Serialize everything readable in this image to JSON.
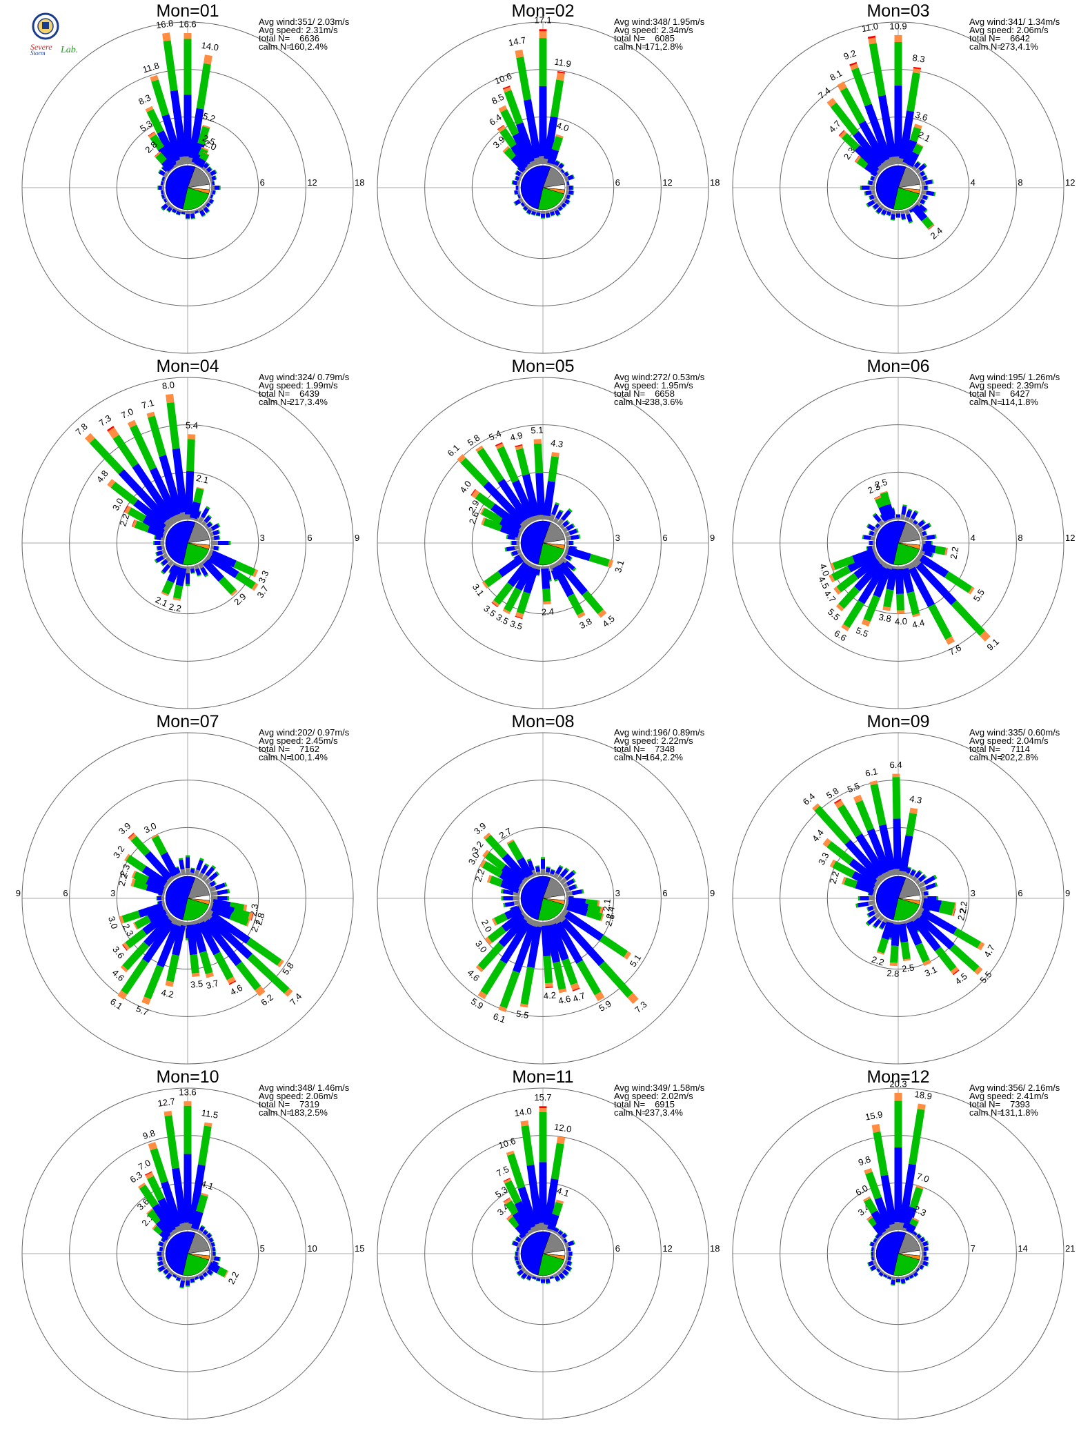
{
  "logo": {
    "top_text": "Severe",
    "bottom_text": "Storm",
    "lab_text": "Lab."
  },
  "colors": {
    "axis": "#aaaaaa",
    "ring": "#666666",
    "calm_pie": [
      "#0000ff",
      "#00c000",
      "#ff8c1a",
      "#ffffff",
      "#808080"
    ],
    "speed_classes": [
      "#808080",
      "#0000ff",
      "#00c000",
      "#ff8c40",
      "#ff0000"
    ]
  },
  "chart_data": [
    {
      "type": "polar-bar",
      "title": "Mon=01",
      "stats": {
        "avg_wind": "Avg wind:351/ 2.03m/s",
        "avg_speed": "Avg speed: 2.31m/s",
        "total_label": "total N=",
        "total": "6636",
        "calm_label": "calm N=",
        "calm": "160,",
        "calm_pct": "2.4%"
      },
      "rings": [
        "6",
        "12",
        "18"
      ],
      "rmax": 18,
      "bars": [
        [
          334,
          8.3,
          "8.3"
        ],
        [
          343,
          11.8,
          "11.8"
        ],
        [
          352,
          16.8,
          "16.8"
        ],
        [
          0,
          16.6,
          "16.6"
        ],
        [
          9,
          14.0,
          "14.0"
        ],
        [
          17,
          5.2,
          "5.2"
        ],
        [
          24,
          2.5,
          "2.5"
        ],
        [
          28,
          2.0,
          "2.0"
        ],
        [
          326,
          5.3,
          "5.3"
        ],
        [
          318,
          2.8,
          "2.8"
        ]
      ]
    },
    {
      "type": "polar-bar",
      "title": "Mon=02",
      "stats": {
        "avg_wind": "Avg wind:348/ 1.95m/s",
        "avg_speed": "Avg speed: 2.34m/s",
        "total_label": "total N=",
        "total": "6085",
        "calm_label": "calm N=",
        "calm": "171,",
        "calm_pct": "2.8%"
      },
      "rings": [
        "6",
        "12",
        "18"
      ],
      "rmax": 18,
      "bars": [
        [
          316,
          3.9,
          "3.9"
        ],
        [
          325,
          6.4,
          "6.4"
        ],
        [
          333,
          8.5,
          "8.5"
        ],
        [
          340,
          10.6,
          "10.6"
        ],
        [
          350,
          14.7,
          "14.7"
        ],
        [
          0,
          17.1,
          "17.1"
        ],
        [
          9,
          11.9,
          "11.9"
        ],
        [
          18,
          4.0,
          "4.0"
        ]
      ]
    },
    {
      "type": "polar-bar",
      "title": "Mon=03",
      "stats": {
        "avg_wind": "Avg wind:341/ 1.34m/s",
        "avg_speed": "Avg speed: 2.06m/s",
        "total_label": "total N=",
        "total": "6642",
        "calm_label": "calm N=",
        "calm": "273,",
        "calm_pct": "4.1%"
      },
      "rings": [
        "4",
        "8",
        "12"
      ],
      "rmax": 12,
      "bars": [
        [
          305,
          2.3,
          "2.3"
        ],
        [
          314,
          4.7,
          "4.7"
        ],
        [
          322,
          7.4,
          "7.4"
        ],
        [
          331,
          8.1,
          "8.1"
        ],
        [
          340,
          9.2,
          "9.2"
        ],
        [
          350,
          11.0,
          "11.0"
        ],
        [
          0,
          10.9,
          "10.9"
        ],
        [
          9,
          8.3,
          "8.3"
        ],
        [
          18,
          3.6,
          "3.6"
        ],
        [
          27,
          2.1,
          "2.1"
        ],
        [
          140,
          2.4,
          "2.4"
        ]
      ]
    },
    {
      "type": "polar-bar",
      "title": "Mon=04",
      "stats": {
        "avg_wind": "Avg wind:324/ 0.79m/s",
        "avg_speed": "Avg speed: 1.99m/s",
        "total_label": "total N=",
        "total": "6439",
        "calm_label": "calm N=",
        "calm": "217,",
        "calm_pct": "3.4%"
      },
      "rings": [
        "3",
        "6",
        "9"
      ],
      "rmax": 9,
      "bars": [
        [
          290,
          2.2,
          "2.2"
        ],
        [
          299,
          3.0,
          "3.0"
        ],
        [
          308,
          4.8,
          "4.8"
        ],
        [
          317,
          7.8,
          "7.8"
        ],
        [
          326,
          7.3,
          "7.3"
        ],
        [
          335,
          7.0,
          "7.0"
        ],
        [
          344,
          7.1,
          "7.1"
        ],
        [
          353,
          8.0,
          "8.0"
        ],
        [
          2,
          5.4,
          "5.4"
        ],
        [
          13,
          2.1,
          "2.1"
        ],
        [
          114,
          3.3,
          "3.3"
        ],
        [
          123,
          3.7,
          "3.7"
        ],
        [
          137,
          2.9,
          "2.9"
        ],
        [
          191,
          2.2,
          "2.2"
        ],
        [
          204,
          2.1,
          "2.1"
        ]
      ]
    },
    {
      "type": "polar-bar",
      "title": "Mon=05",
      "stats": {
        "avg_wind": "Avg wind:272/ 0.53m/s",
        "avg_speed": "Avg speed: 1.95m/s",
        "total_label": "total N=",
        "total": "6658",
        "calm_label": "calm N=",
        "calm": "238,",
        "calm_pct": "3.6%"
      },
      "rings": [
        "3",
        "6",
        "9"
      ],
      "rmax": 9,
      "bars": [
        [
          290,
          2.6,
          "2.6"
        ],
        [
          298,
          2.9,
          "2.9"
        ],
        [
          306,
          4.0,
          "4.0"
        ],
        [
          316,
          6.1,
          "6.1"
        ],
        [
          326,
          5.8,
          "5.8"
        ],
        [
          336,
          5.4,
          "5.4"
        ],
        [
          346,
          4.9,
          "4.9"
        ],
        [
          357,
          5.1,
          "5.1"
        ],
        [
          8,
          4.3,
          "4.3"
        ],
        [
          107,
          3.1,
          "3.1"
        ],
        [
          140,
          4.5,
          "4.5"
        ],
        [
          152,
          3.8,
          "3.8"
        ],
        [
          176,
          2.4,
          "2.4"
        ],
        [
          198,
          3.5,
          "3.5"
        ],
        [
          208,
          3.5,
          "3.5"
        ],
        [
          218,
          3.5,
          "3.5"
        ],
        [
          234,
          3.1,
          "3.1"
        ]
      ]
    },
    {
      "type": "polar-bar",
      "title": "Mon=06",
      "stats": {
        "avg_wind": "Avg wind:195/ 1.26m/s",
        "avg_speed": "Avg speed: 2.39m/s",
        "total_label": "total N=",
        "total": "6427",
        "calm_label": "calm N=",
        "calm": "114,",
        "calm_pct": "1.8%"
      },
      "rings": [
        "4",
        "8",
        "12"
      ],
      "rmax": 12,
      "bars": [
        [
          336,
          2.3,
          "2.3"
        ],
        [
          344,
          2.5,
          "2.5"
        ],
        [
          100,
          2.2,
          "2.2"
        ],
        [
          123,
          5.5,
          "5.5"
        ],
        [
          137,
          9.1,
          "9.1"
        ],
        [
          152,
          7.6,
          "7.6"
        ],
        [
          166,
          4.4,
          "4.4"
        ],
        [
          178,
          4.0,
          "4.0"
        ],
        [
          190,
          3.8,
          "3.8"
        ],
        [
          202,
          5.5,
          "5.5"
        ],
        [
          212,
          6.6,
          "6.6"
        ],
        [
          222,
          5.5,
          "5.5"
        ],
        [
          232,
          4.7,
          "4.7"
        ],
        [
          242,
          4.5,
          "4.5"
        ],
        [
          250,
          4.0,
          "4.0"
        ]
      ]
    },
    {
      "type": "polar-bar",
      "title": "Mon=07",
      "stats": {
        "avg_wind": "Avg wind:202/ 0.97m/s",
        "avg_speed": "Avg speed: 2.45m/s",
        "total_label": "total N=",
        "total": "7162",
        "calm_label": "calm N=",
        "calm": "100,",
        "calm_pct": "1.4%"
      },
      "rings": [
        "3",
        "6",
        "9"
      ],
      "rmax": 9,
      "bars": [
        [
          286,
          2.2,
          "2.2"
        ],
        [
          294,
          2.3,
          "2.3"
        ],
        [
          304,
          3.2,
          "3.2"
        ],
        [
          318,
          3.9,
          "3.9"
        ],
        [
          332,
          3.0,
          "3.0"
        ],
        [
          100,
          2.3,
          "2.3"
        ],
        [
          106,
          2.8,
          "2.8"
        ],
        [
          112,
          2.7,
          "2.7"
        ],
        [
          125,
          5.8,
          "5.8"
        ],
        [
          133,
          7.4,
          "7.4"
        ],
        [
          142,
          6.2,
          "6.2"
        ],
        [
          152,
          4.6,
          "4.6"
        ],
        [
          164,
          3.7,
          "3.7"
        ],
        [
          174,
          3.5,
          "3.5"
        ],
        [
          192,
          4.2,
          "4.2"
        ],
        [
          202,
          5.7,
          "5.7"
        ],
        [
          214,
          6.1,
          "6.1"
        ],
        [
          222,
          4.6,
          "4.6"
        ],
        [
          232,
          3.6,
          "3.6"
        ],
        [
          242,
          2.3,
          "2.3"
        ],
        [
          252,
          3.0,
          "3.0"
        ]
      ]
    },
    {
      "type": "polar-bar",
      "title": "Mon=08",
      "stats": {
        "avg_wind": "Avg wind:196/ 0.89m/s",
        "avg_speed": "Avg speed: 2.22m/s",
        "total_label": "total N=",
        "total": "7348",
        "calm_label": "calm N=",
        "calm": "164,",
        "calm_pct": "2.2%"
      },
      "rings": [
        "3",
        "6",
        "9"
      ],
      "rmax": 9,
      "bars": [
        [
          290,
          2.2,
          "2.2"
        ],
        [
          300,
          3.0,
          "3.0"
        ],
        [
          308,
          3.2,
          "3.2"
        ],
        [
          318,
          3.9,
          "3.9"
        ],
        [
          330,
          2.7,
          "2.7"
        ],
        [
          96,
          2.1,
          "2.1"
        ],
        [
          102,
          2.4,
          "2.4"
        ],
        [
          108,
          2.5,
          "2.5"
        ],
        [
          124,
          5.1,
          "5.1"
        ],
        [
          138,
          7.3,
          "7.3"
        ],
        [
          150,
          5.9,
          "5.9"
        ],
        [
          160,
          4.7,
          "4.7"
        ],
        [
          168,
          4.6,
          "4.6"
        ],
        [
          176,
          4.2,
          "4.2"
        ],
        [
          190,
          5.5,
          "5.5"
        ],
        [
          200,
          6.1,
          "6.1"
        ],
        [
          212,
          5.9,
          "5.9"
        ],
        [
          222,
          4.6,
          "4.6"
        ],
        [
          232,
          3.0,
          "3.0"
        ],
        [
          244,
          2.0,
          "2.0"
        ]
      ]
    },
    {
      "type": "polar-bar",
      "title": "Mon=09",
      "stats": {
        "avg_wind": "Avg wind:335/ 0.60m/s",
        "avg_speed": "Avg speed: 2.04m/s",
        "total_label": "total N=",
        "total": "7114",
        "calm_label": "calm N=",
        "calm": "202,",
        "calm_pct": "2.8%"
      },
      "rings": [
        "3",
        "6",
        "9"
      ],
      "rmax": 9,
      "bars": [
        [
          288,
          2.2,
          "2.2"
        ],
        [
          298,
          3.3,
          "3.3"
        ],
        [
          308,
          4.4,
          "4.4"
        ],
        [
          318,
          6.4,
          "6.4"
        ],
        [
          328,
          5.8,
          "5.8"
        ],
        [
          338,
          5.5,
          "5.5"
        ],
        [
          348,
          6.1,
          "6.1"
        ],
        [
          359,
          6.4,
          "6.4"
        ],
        [
          10,
          4.3,
          "4.3"
        ],
        [
          98,
          2.2,
          "2.2"
        ],
        [
          104,
          2.2,
          "2.2"
        ],
        [
          120,
          4.7,
          "4.7"
        ],
        [
          132,
          5.5,
          "5.5"
        ],
        [
          142,
          4.5,
          "4.5"
        ],
        [
          156,
          3.1,
          "3.1"
        ],
        [
          172,
          2.5,
          "2.5"
        ],
        [
          184,
          2.8,
          "2.8"
        ],
        [
          198,
          2.2,
          "2.2"
        ]
      ]
    },
    {
      "type": "polar-bar",
      "title": "Mon=10",
      "stats": {
        "avg_wind": "Avg wind:348/ 1.46m/s",
        "avg_speed": "Avg speed: 2.06m/s",
        "total_label": "total N=",
        "total": "7319",
        "calm_label": "calm N=",
        "calm": "183,",
        "calm_pct": "2.5%"
      },
      "rings": [
        "5",
        "10",
        "15"
      ],
      "rmax": 15,
      "bars": [
        [
          310,
          2.1,
          "2.1"
        ],
        [
          318,
          3.6,
          "3.6"
        ],
        [
          326,
          6.3,
          "6.3"
        ],
        [
          334,
          7.0,
          "7.0"
        ],
        [
          342,
          9.8,
          "9.8"
        ],
        [
          352,
          12.7,
          "12.7"
        ],
        [
          0,
          13.6,
          "13.6"
        ],
        [
          9,
          11.5,
          "11.5"
        ],
        [
          16,
          4.1,
          "4.1"
        ],
        [
          118,
          2.2,
          "2.2"
        ]
      ]
    },
    {
      "type": "polar-bar",
      "title": "Mon=11",
      "stats": {
        "avg_wind": "Avg wind:349/ 1.58m/s",
        "avg_speed": "Avg speed: 2.02m/s",
        "total_label": "total N=",
        "total": "6915",
        "calm_label": "calm N=",
        "calm": "237,",
        "calm_pct": "3.4%"
      },
      "rings": [
        "6",
        "12",
        "18"
      ],
      "rmax": 18,
      "bars": [
        [
          318,
          3.4,
          "3.4"
        ],
        [
          326,
          5.3,
          "5.3"
        ],
        [
          334,
          7.5,
          "7.5"
        ],
        [
          342,
          10.6,
          "10.6"
        ],
        [
          352,
          14.0,
          "14.0"
        ],
        [
          0,
          15.7,
          "15.7"
        ],
        [
          9,
          12.0,
          "12.0"
        ],
        [
          18,
          4.1,
          "4.1"
        ]
      ]
    },
    {
      "type": "polar-bar",
      "title": "Mon=12",
      "stats": {
        "avg_wind": "Avg wind:356/ 2.16m/s",
        "avg_speed": "Avg speed: 2.41m/s",
        "total_label": "total N=",
        "total": "7393",
        "calm_label": "calm N=",
        "calm": "131,",
        "calm_pct": "1.8%"
      },
      "rings": [
        "7",
        "14",
        "21"
      ],
      "rmax": 21,
      "bars": [
        [
          322,
          3.4,
          "3.4"
        ],
        [
          330,
          6.0,
          "6.0"
        ],
        [
          340,
          9.8,
          "9.8"
        ],
        [
          350,
          15.9,
          "15.9"
        ],
        [
          0,
          20.3,
          "20.3"
        ],
        [
          9,
          18.9,
          "18.9"
        ],
        [
          18,
          7.0,
          "7.0"
        ],
        [
          27,
          2.3,
          "2.3"
        ]
      ]
    }
  ]
}
